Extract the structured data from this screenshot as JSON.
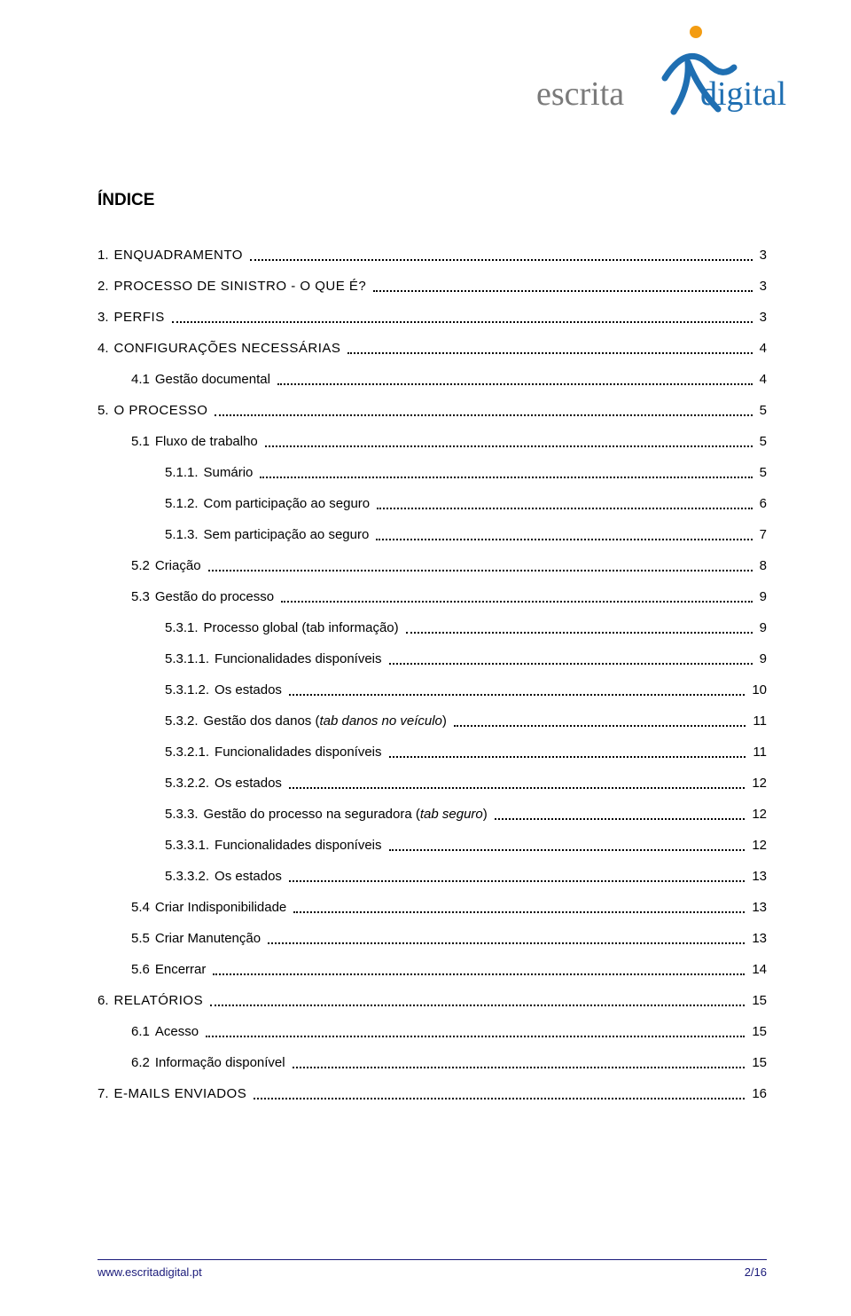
{
  "logo": {
    "text_left": "escrita",
    "text_right": "digital",
    "color_left": "#7a7a7a",
    "color_right": "#1f6fb2",
    "dot_color": "#f39c12",
    "figure_color": "#1f6fb2"
  },
  "title": "ÍNDICE",
  "toc": [
    {
      "lvl": 0,
      "num": "1.",
      "label": "ENQUADRAMENTO",
      "page": "3",
      "sc": true
    },
    {
      "lvl": 0,
      "num": "2.",
      "label": "PROCESSO DE SINISTRO - O QUE É?",
      "page": "3",
      "sc": true
    },
    {
      "lvl": 0,
      "num": "3.",
      "label": "PERFIS",
      "page": "3",
      "sc": true
    },
    {
      "lvl": 0,
      "num": "4.",
      "label": "CONFIGURAÇÕES NECESSÁRIAS",
      "page": "4",
      "sc": true
    },
    {
      "lvl": 1,
      "num": "4.1",
      "label": "Gestão documental",
      "page": "4"
    },
    {
      "lvl": 0,
      "num": "5.",
      "label": "O PROCESSO",
      "page": "5",
      "sc": true
    },
    {
      "lvl": 1,
      "num": "5.1",
      "label": "Fluxo de trabalho",
      "page": "5"
    },
    {
      "lvl": 2,
      "num": "5.1.1.",
      "label": "Sumário",
      "page": "5"
    },
    {
      "lvl": 2,
      "num": "5.1.2.",
      "label": "Com participação ao seguro",
      "page": "6"
    },
    {
      "lvl": 2,
      "num": "5.1.3.",
      "label": "Sem participação ao seguro",
      "page": "7"
    },
    {
      "lvl": 1,
      "num": "5.2",
      "label": "Criação",
      "page": "8"
    },
    {
      "lvl": 1,
      "num": "5.3",
      "label": "Gestão do processo",
      "page": "9"
    },
    {
      "lvl": 2,
      "num": "5.3.1.",
      "label": "Processo global (tab informação)",
      "page": "9"
    },
    {
      "lvl": 2,
      "num": "5.3.1.1.",
      "label": "Funcionalidades disponíveis",
      "page": "9"
    },
    {
      "lvl": 2,
      "num": "5.3.1.2.",
      "label": "Os estados",
      "page": "10"
    },
    {
      "lvl": 2,
      "num": "5.3.2.",
      "label": "Gestão dos danos (tab danos no veículo)",
      "page": "11",
      "italic": true
    },
    {
      "lvl": 2,
      "num": "5.3.2.1.",
      "label": "Funcionalidades disponíveis",
      "page": "11"
    },
    {
      "lvl": 2,
      "num": "5.3.2.2.",
      "label": "Os estados",
      "page": "12"
    },
    {
      "lvl": 2,
      "num": "5.3.3.",
      "label": "Gestão do processo na seguradora (tab seguro)",
      "page": "12",
      "italic": true
    },
    {
      "lvl": 2,
      "num": "5.3.3.1.",
      "label": "Funcionalidades disponíveis",
      "page": "12"
    },
    {
      "lvl": 2,
      "num": "5.3.3.2.",
      "label": "Os estados",
      "page": "13"
    },
    {
      "lvl": 1,
      "num": "5.4",
      "label": "Criar Indisponibilidade",
      "page": "13"
    },
    {
      "lvl": 1,
      "num": "5.5",
      "label": "Criar Manutenção",
      "page": "13"
    },
    {
      "lvl": 1,
      "num": "5.6",
      "label": "Encerrar",
      "page": "14"
    },
    {
      "lvl": 0,
      "num": "6.",
      "label": "RELATÓRIOS",
      "page": "15",
      "sc": true
    },
    {
      "lvl": 1,
      "num": "6.1",
      "label": "Acesso",
      "page": "15"
    },
    {
      "lvl": 1,
      "num": "6.2",
      "label": "Informação disponível",
      "page": "15"
    },
    {
      "lvl": 0,
      "num": "7.",
      "label": "E-MAILS ENVIADOS",
      "page": "16",
      "sc": true
    }
  ],
  "footer": {
    "left": "www.escritadigital.pt",
    "right": "2/16",
    "color": "#1a1a7a"
  }
}
